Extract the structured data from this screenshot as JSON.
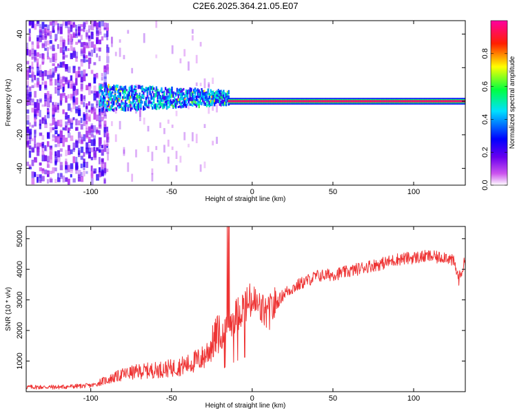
{
  "title": "C2E6.2025.364.21.05.E07",
  "chart_data": [
    {
      "type": "heatmap",
      "xlabel": "Height of straight line (km)",
      "ylabel": "Frequency (Hz)",
      "xlim": [
        -140,
        132
      ],
      "ylim": [
        -50,
        48
      ],
      "xticks": [
        -100,
        -50,
        0,
        50,
        100
      ],
      "yticks": [
        -40,
        -20,
        0,
        20,
        40
      ],
      "colorbar": {
        "label": "Normalized spectral amplitude",
        "range": [
          0,
          1
        ],
        "ticks": [
          "0.0",
          "0.2",
          "0.4",
          "0.6",
          "0.8"
        ],
        "colors": [
          "#ffffff",
          "#cc55ee",
          "#6a00ee",
          "#0000ff",
          "#00e0ff",
          "#00ff40",
          "#ffff00",
          "#ff2000",
          "#ff00a0"
        ]
      },
      "description_regions": [
        {
          "x_range": [
            -140,
            -90
          ],
          "freq_spread_hz": 48,
          "amplitude": 0.15
        },
        {
          "x_range": [
            -95,
            -15
          ],
          "freq_spread_hz": 8,
          "amplitude": 0.35
        },
        {
          "x_range": [
            -15,
            132
          ],
          "freq_spread_hz": 1,
          "amplitude": 0.95
        }
      ]
    },
    {
      "type": "line",
      "xlabel": "Height of straight line (km)",
      "ylabel": "SNR (10 * v/v)",
      "xlim": [
        -140,
        132
      ],
      "ylim": [
        0,
        5400
      ],
      "xticks": [
        -100,
        -50,
        0,
        50,
        100
      ],
      "yticks": [
        1000,
        2000,
        3000,
        4000,
        5000
      ],
      "color": "#ee3333",
      "series": [
        {
          "name": "SNR",
          "x": [
            -140,
            -120,
            -100,
            -90,
            -80,
            -70,
            -60,
            -50,
            -40,
            -30,
            -25,
            -20,
            -15,
            -10,
            -5,
            0,
            5,
            10,
            15,
            20,
            30,
            40,
            50,
            60,
            70,
            80,
            90,
            100,
            110,
            115,
            120,
            125,
            128,
            132
          ],
          "y": [
            150,
            150,
            200,
            320,
            480,
            560,
            600,
            650,
            750,
            950,
            1300,
            1700,
            2150,
            2500,
            2800,
            2950,
            2700,
            2550,
            2900,
            3250,
            3550,
            3800,
            3850,
            3950,
            4100,
            4200,
            4350,
            4400,
            4450,
            4400,
            4450,
            4250,
            3700,
            4300
          ]
        }
      ]
    }
  ]
}
